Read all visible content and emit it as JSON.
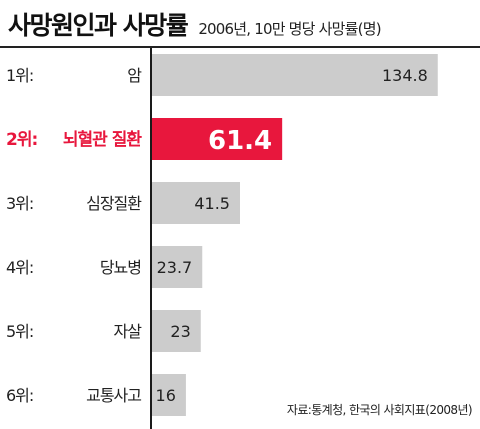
{
  "title": "사망원인과 사망률",
  "subtitle": "2006년, 10만 명당 사망률(명)",
  "source": "자료:통계청, 한국의 사회지표(2008년)",
  "colors": {
    "bar": "#cccccc",
    "highlight": "#e8173d",
    "text": "#222222",
    "highlight_value": "#ffffff"
  },
  "chart_data": {
    "type": "bar",
    "orientation": "horizontal",
    "title": "사망원인과 사망률",
    "subtitle": "2006년, 10만 명당 사망률(명)",
    "ranks": [
      "1위:",
      "2위:",
      "3위:",
      "4위:",
      "5위:",
      "6위:"
    ],
    "categories": [
      "암",
      "뇌혈관 질환",
      "심장질환",
      "당뇨병",
      "자살",
      "교통사고"
    ],
    "values": [
      134.8,
      61.4,
      41.5,
      23.7,
      23,
      16
    ],
    "value_labels": [
      "134.8",
      "61.4",
      "41.5",
      "23.7",
      "23",
      "16"
    ],
    "highlight_index": 1,
    "xlim": [
      0,
      150
    ],
    "grid": false,
    "legend": "none"
  }
}
